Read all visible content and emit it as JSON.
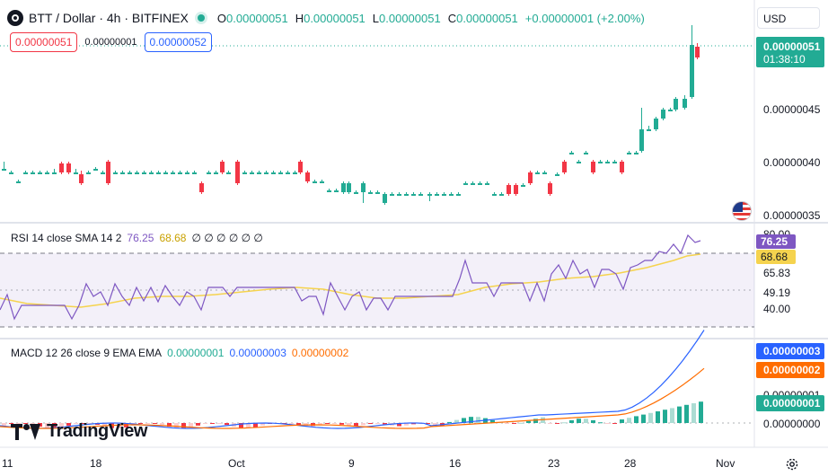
{
  "legend": {
    "title": "BTT / Dollar · 4h · BITFINEX",
    "open_key": "O",
    "open": "0.00000051",
    "high_key": "H",
    "high": "0.00000051",
    "low_key": "L",
    "low": "0.00000051",
    "close_key": "C",
    "close": "0.00000051",
    "change": "+0.00000001 (+2.00%)"
  },
  "trade": {
    "bid": "0.00000051",
    "spread": "0.00000001",
    "ask": "0.00000052"
  },
  "currency": "USD",
  "price_axis": {
    "ticks": [
      "0.00000045",
      "0.00000040",
      "0.00000035"
    ],
    "last_price": "0.00000051",
    "countdown": "01:38:10"
  },
  "rsi": {
    "name": "RSI 14 close SMA 14 2",
    "value": "76.25",
    "sma": "68.68",
    "extra": "∅ ∅ ∅ ∅ ∅ ∅",
    "ticks": [
      "80.00",
      "65.83",
      "49.19",
      "40.00"
    ],
    "label_value": "76.25",
    "label_sma": "68.68"
  },
  "macd": {
    "name": "MACD 12 26 close 9 EMA EMA",
    "histogram": "0.00000001",
    "macd": "0.00000003",
    "signal": "0.00000002",
    "axis_ticks": [
      "0.00000001",
      "0.00000000"
    ],
    "label_macd": "0.00000003",
    "label_signal": "0.00000002",
    "label_hist": "0.00000001"
  },
  "time_axis": [
    "11",
    "18",
    "Oct",
    "9",
    "16",
    "23",
    "28",
    "Nov"
  ],
  "logo": "TradingView",
  "colors": {
    "up": "#22ab94",
    "down": "#f23645",
    "rsi": "#7e57c2",
    "rsi_sma": "#f5d34e",
    "macd": "#2962ff",
    "signal": "#ff6d00"
  },
  "icons": {
    "symbol": "bitfinex-logo-icon",
    "live": "live-status-icon",
    "flag": "us-flag-icon",
    "settings": "gear-icon"
  }
}
